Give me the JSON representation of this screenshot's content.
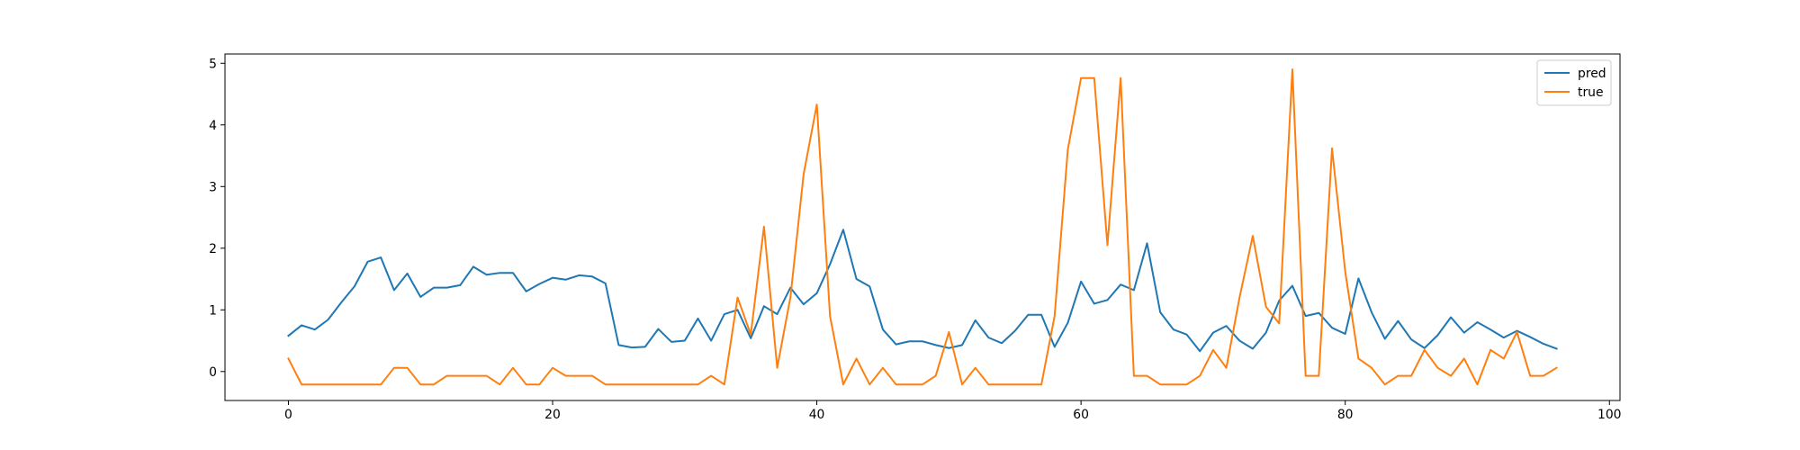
{
  "chart_data": {
    "type": "line",
    "title": "",
    "xlabel": "",
    "ylabel": "",
    "xlim": [
      -4.8,
      100.8
    ],
    "ylim": [
      -0.47,
      5.15
    ],
    "xticks": [
      0,
      20,
      40,
      60,
      80,
      100
    ],
    "yticks": [
      0,
      1,
      2,
      3,
      4,
      5
    ],
    "grid": false,
    "legend": "upper right",
    "series": [
      {
        "name": "pred",
        "color": "#1f77b4",
        "x": [
          0,
          1,
          2,
          3,
          4,
          5,
          6,
          7,
          8,
          9,
          10,
          11,
          12,
          13,
          14,
          15,
          16,
          17,
          18,
          19,
          20,
          21,
          22,
          23,
          24,
          25,
          26,
          27,
          28,
          29,
          30,
          31,
          32,
          33,
          34,
          35,
          36,
          37,
          38,
          39,
          40,
          41,
          42,
          43,
          44,
          45,
          46,
          47,
          48,
          49,
          50,
          51,
          52,
          53,
          54,
          55,
          56,
          57,
          58,
          59,
          60,
          61,
          62,
          63,
          64,
          65,
          66,
          67,
          68,
          69,
          70,
          71,
          72,
          73,
          74,
          75,
          76,
          77,
          78,
          79,
          80,
          81,
          82,
          83,
          84,
          85,
          86,
          87,
          88,
          89,
          90,
          91,
          92,
          93,
          94,
          95,
          96
        ],
        "values": [
          0.58,
          0.75,
          0.68,
          0.84,
          1.12,
          1.38,
          1.78,
          1.85,
          1.32,
          1.59,
          1.21,
          1.36,
          1.36,
          1.4,
          1.7,
          1.57,
          1.6,
          1.6,
          1.3,
          1.42,
          1.52,
          1.49,
          1.56,
          1.54,
          1.43,
          0.43,
          0.39,
          0.4,
          0.69,
          0.48,
          0.5,
          0.86,
          0.5,
          0.93,
          1.0,
          0.54,
          1.06,
          0.93,
          1.36,
          1.09,
          1.27,
          1.74,
          2.3,
          1.5,
          1.38,
          0.68,
          0.44,
          0.49,
          0.49,
          0.43,
          0.38,
          0.43,
          0.83,
          0.55,
          0.46,
          0.66,
          0.92,
          0.92,
          0.4,
          0.79,
          1.46,
          1.1,
          1.16,
          1.41,
          1.32,
          2.08,
          0.96,
          0.68,
          0.6,
          0.33,
          0.63,
          0.74,
          0.5,
          0.37,
          0.63,
          1.15,
          1.39,
          0.9,
          0.95,
          0.71,
          0.61,
          1.51,
          0.96,
          0.53,
          0.82,
          0.52,
          0.38,
          0.59,
          0.88,
          0.63,
          0.8,
          0.68,
          0.55,
          0.66,
          0.56,
          0.45,
          0.37
        ]
      },
      {
        "name": "true",
        "color": "#ff7f0e",
        "x": [
          0,
          1,
          2,
          3,
          4,
          5,
          6,
          7,
          8,
          9,
          10,
          11,
          12,
          13,
          14,
          15,
          16,
          17,
          18,
          19,
          20,
          21,
          22,
          23,
          24,
          25,
          26,
          27,
          28,
          29,
          30,
          31,
          32,
          33,
          34,
          35,
          36,
          37,
          38,
          39,
          40,
          41,
          42,
          43,
          44,
          45,
          46,
          47,
          48,
          49,
          50,
          51,
          52,
          53,
          54,
          55,
          56,
          57,
          58,
          59,
          60,
          61,
          62,
          63,
          64,
          65,
          66,
          67,
          68,
          69,
          70,
          71,
          72,
          73,
          74,
          75,
          76,
          77,
          78,
          79,
          80,
          81,
          82,
          83,
          84,
          85,
          86,
          87,
          88,
          89,
          90,
          91,
          92,
          93,
          94,
          95,
          96
        ],
        "values": [
          0.21,
          -0.21,
          -0.21,
          -0.21,
          -0.21,
          -0.21,
          -0.21,
          -0.21,
          0.06,
          0.06,
          -0.21,
          -0.21,
          -0.07,
          -0.07,
          -0.07,
          -0.07,
          -0.21,
          0.06,
          -0.21,
          -0.21,
          0.06,
          -0.07,
          -0.07,
          -0.07,
          -0.21,
          -0.21,
          -0.21,
          -0.21,
          -0.21,
          -0.21,
          -0.21,
          -0.21,
          -0.07,
          -0.21,
          1.2,
          0.6,
          2.35,
          0.06,
          1.2,
          3.2,
          4.33,
          0.9,
          -0.21,
          0.21,
          -0.21,
          0.06,
          -0.21,
          -0.21,
          -0.21,
          -0.07,
          0.64,
          -0.21,
          0.06,
          -0.21,
          -0.21,
          -0.21,
          -0.21,
          -0.21,
          0.9,
          3.6,
          4.76,
          4.76,
          2.05,
          4.76,
          -0.07,
          -0.07,
          -0.21,
          -0.21,
          -0.21,
          -0.07,
          0.35,
          0.06,
          1.2,
          2.2,
          1.05,
          0.78,
          4.9,
          -0.07,
          -0.07,
          3.62,
          1.62,
          0.21,
          0.06,
          -0.21,
          -0.07,
          -0.07,
          0.35,
          0.06,
          -0.07,
          0.21,
          -0.21,
          0.35,
          0.21,
          0.64,
          -0.07,
          -0.07,
          0.06
        ]
      }
    ]
  }
}
